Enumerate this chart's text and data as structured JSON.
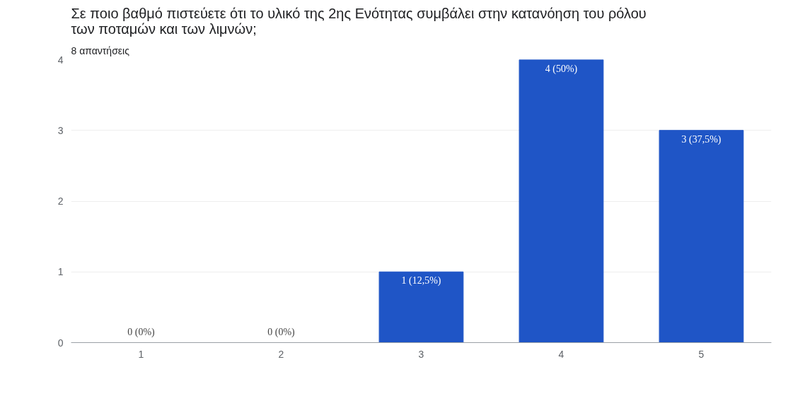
{
  "chart_data": {
    "type": "bar",
    "title": "Σε ποιο βαθμό πιστεύετε ότι το υλικό της 2ης Ενότητας συμβάλει στην κατανόηση του ρόλου των ποταμών και των λιμνών;",
    "subtitle": "8 απαντήσεις",
    "categories": [
      "1",
      "2",
      "3",
      "4",
      "5"
    ],
    "values": [
      0,
      0,
      1,
      4,
      3
    ],
    "value_labels": [
      "0 (0%)",
      "0 (0%)",
      "1 (12,5%)",
      "4 (50%)",
      "3 (37,5%)"
    ],
    "color": "#1f55c6",
    "ylim": [
      0,
      4
    ],
    "yticks": [
      0,
      1,
      2,
      3,
      4
    ],
    "grid": "y"
  }
}
